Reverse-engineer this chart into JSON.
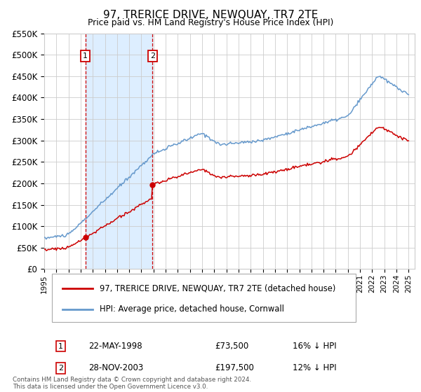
{
  "title": "97, TRERICE DRIVE, NEWQUAY, TR7 2TE",
  "subtitle": "Price paid vs. HM Land Registry's House Price Index (HPI)",
  "legend_line1": "97, TRERICE DRIVE, NEWQUAY, TR7 2TE (detached house)",
  "legend_line2": "HPI: Average price, detached house, Cornwall",
  "transaction1_date": "22-MAY-1998",
  "transaction1_price": 73500,
  "transaction1_year": 1998.38,
  "transaction2_date": "28-NOV-2003",
  "transaction2_price": 197500,
  "transaction2_year": 2003.91,
  "ylim": [
    0,
    550000
  ],
  "xlim_start": 1995.0,
  "xlim_end": 2025.5,
  "line_color_red": "#cc0000",
  "line_color_blue": "#6699cc",
  "shade_color": "#ddeeff",
  "grid_color": "#cccccc",
  "footnote": "Contains HM Land Registry data © Crown copyright and database right 2024.\nThis data is licensed under the Open Government Licence v3.0.",
  "yticks": [
    0,
    50000,
    100000,
    150000,
    200000,
    250000,
    300000,
    350000,
    400000,
    450000,
    500000,
    550000
  ],
  "ytick_labels": [
    "£0",
    "£50K",
    "£100K",
    "£150K",
    "£200K",
    "£250K",
    "£300K",
    "£350K",
    "£400K",
    "£450K",
    "£500K",
    "£550K"
  ]
}
